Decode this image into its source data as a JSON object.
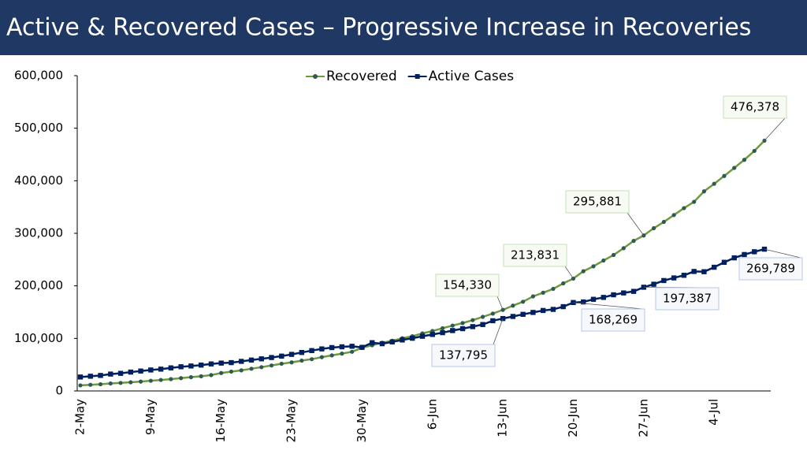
{
  "chart_data": {
    "type": "line",
    "title": "Active & Recovered Cases – Progressive Increase in Recoveries",
    "categories": [
      "2-May",
      null,
      null,
      null,
      null,
      null,
      null,
      "9-May",
      null,
      null,
      null,
      null,
      null,
      null,
      "16-May",
      null,
      null,
      null,
      null,
      null,
      null,
      "23-May",
      null,
      null,
      null,
      null,
      null,
      null,
      "30-May",
      null,
      null,
      null,
      null,
      null,
      null,
      "6-Jun",
      null,
      null,
      null,
      null,
      null,
      null,
      "13-Jun",
      null,
      null,
      null,
      null,
      null,
      null,
      "20-Jun",
      null,
      null,
      null,
      null,
      null,
      null,
      "27-Jun",
      null,
      null,
      null,
      null,
      null,
      null,
      "4-Jul",
      null,
      null,
      null,
      null,
      null
    ],
    "series": [
      {
        "name": "Recovered",
        "color": "#6f9a3c",
        "marker_color": "#2e5a55",
        "marker": "circle",
        "values": [
          10600,
          11700,
          12700,
          14200,
          15300,
          16500,
          17800,
          19400,
          20900,
          22500,
          24400,
          26200,
          27900,
          30200,
          34100,
          36800,
          39200,
          42300,
          45300,
          48500,
          51800,
          54400,
          57700,
          60500,
          64300,
          67700,
          71100,
          74500,
          82000,
          86900,
          91800,
          95500,
          100300,
          104100,
          109500,
          114000,
          119300,
          124400,
          129200,
          134700,
          141000,
          147200,
          154330,
          162400,
          169800,
          180000,
          186900,
          194300,
          204700,
          213831,
          227800,
          237200,
          248200,
          258700,
          271700,
          285600,
          295881,
          309700,
          321700,
          334800,
          347900,
          359900,
          379900,
          394200,
          409100,
          424400,
          439900,
          456800,
          476378
        ],
        "value_labels": [
          null,
          null,
          null,
          null,
          null,
          null,
          null,
          null,
          null,
          null,
          null,
          null,
          null,
          null,
          null,
          null,
          null,
          null,
          null,
          null,
          null,
          null,
          null,
          null,
          null,
          null,
          null,
          null,
          null,
          null,
          null,
          null,
          null,
          null,
          null,
          null,
          null,
          null,
          null,
          null,
          null,
          null,
          "154,330",
          null,
          null,
          null,
          null,
          null,
          null,
          "213,831",
          null,
          null,
          null,
          null,
          null,
          null,
          "295,881",
          null,
          null,
          null,
          null,
          null,
          null,
          null,
          null,
          null,
          null,
          null,
          "476,378"
        ]
      },
      {
        "name": "Active Cases",
        "color": "#002060",
        "marker_color": "#002060",
        "marker": "square",
        "values": [
          26500,
          28000,
          29500,
          32100,
          33500,
          35900,
          37900,
          39900,
          41500,
          43900,
          46000,
          47500,
          49200,
          51400,
          53000,
          53900,
          56300,
          58800,
          61100,
          63600,
          66300,
          69600,
          73200,
          76800,
          80000,
          82500,
          84000,
          85000,
          83000,
          91800,
          89900,
          93300,
          97000,
          100300,
          104100,
          107500,
          110900,
          114900,
          118500,
          122400,
          126400,
          133600,
          137795,
          141800,
          145800,
          149400,
          153100,
          155200,
          160400,
          168269,
          169400,
          174400,
          178000,
          183000,
          186500,
          189500,
          197387,
          203100,
          210100,
          215100,
          220100,
          227400,
          226900,
          235400,
          244800,
          253300,
          259600,
          264900,
          269789
        ],
        "value_labels": [
          null,
          null,
          null,
          null,
          null,
          null,
          null,
          null,
          null,
          null,
          null,
          null,
          null,
          null,
          null,
          null,
          null,
          null,
          null,
          null,
          null,
          null,
          null,
          null,
          null,
          null,
          null,
          null,
          null,
          null,
          null,
          null,
          null,
          null,
          null,
          null,
          null,
          null,
          null,
          null,
          null,
          null,
          "137,795",
          null,
          null,
          null,
          null,
          null,
          null,
          "168,269",
          null,
          null,
          null,
          null,
          null,
          null,
          "197,387",
          null,
          null,
          null,
          null,
          null,
          null,
          null,
          null,
          null,
          null,
          null,
          "269,789"
        ]
      }
    ],
    "ylim": [
      0,
      600000
    ],
    "yticks": [
      0,
      {
        "value": 100000,
        "label": "100,000"
      },
      {
        "value": 200000,
        "label": "200,000"
      },
      {
        "value": 300000,
        "label": "300,000"
      },
      {
        "value": 400000,
        "label": "400,000"
      },
      {
        "value": 500000,
        "label": "500,000"
      },
      {
        "value": 600000,
        "label": "600,000"
      }
    ],
    "grid": false,
    "legend": "top"
  }
}
